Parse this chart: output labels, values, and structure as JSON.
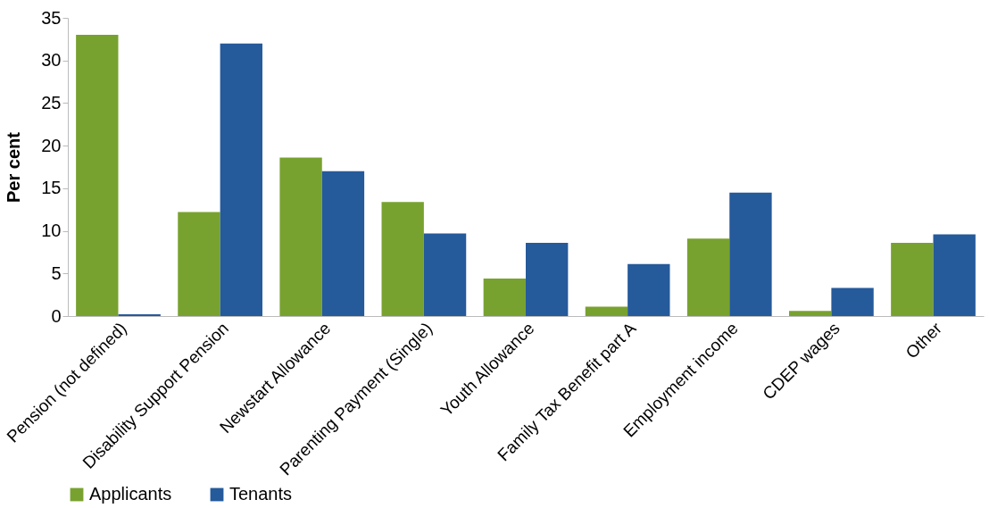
{
  "chart_data": {
    "type": "bar",
    "ylabel": "Per cent",
    "categories": [
      "Pension (not defined)",
      "Disability Support Pension",
      "Newstart Allowance",
      "Parenting Payment (Single)",
      "Youth Allowance",
      "Family Tax Benefit part A",
      "Employment income",
      "CDEP wages",
      "Other"
    ],
    "series": [
      {
        "name": "Applicants",
        "color": "#78a22f",
        "values": [
          33.0,
          12.2,
          18.6,
          13.4,
          4.4,
          1.1,
          9.1,
          0.6,
          8.6
        ]
      },
      {
        "name": "Tenants",
        "color": "#255a9b",
        "values": [
          0.2,
          32.0,
          17.0,
          9.7,
          8.6,
          6.1,
          14.5,
          3.3,
          9.6
        ]
      }
    ],
    "ylim": [
      0,
      35
    ],
    "yticks": [
      0,
      5,
      10,
      15,
      20,
      25,
      30,
      35
    ],
    "grid": false,
    "legend": "bottom"
  }
}
